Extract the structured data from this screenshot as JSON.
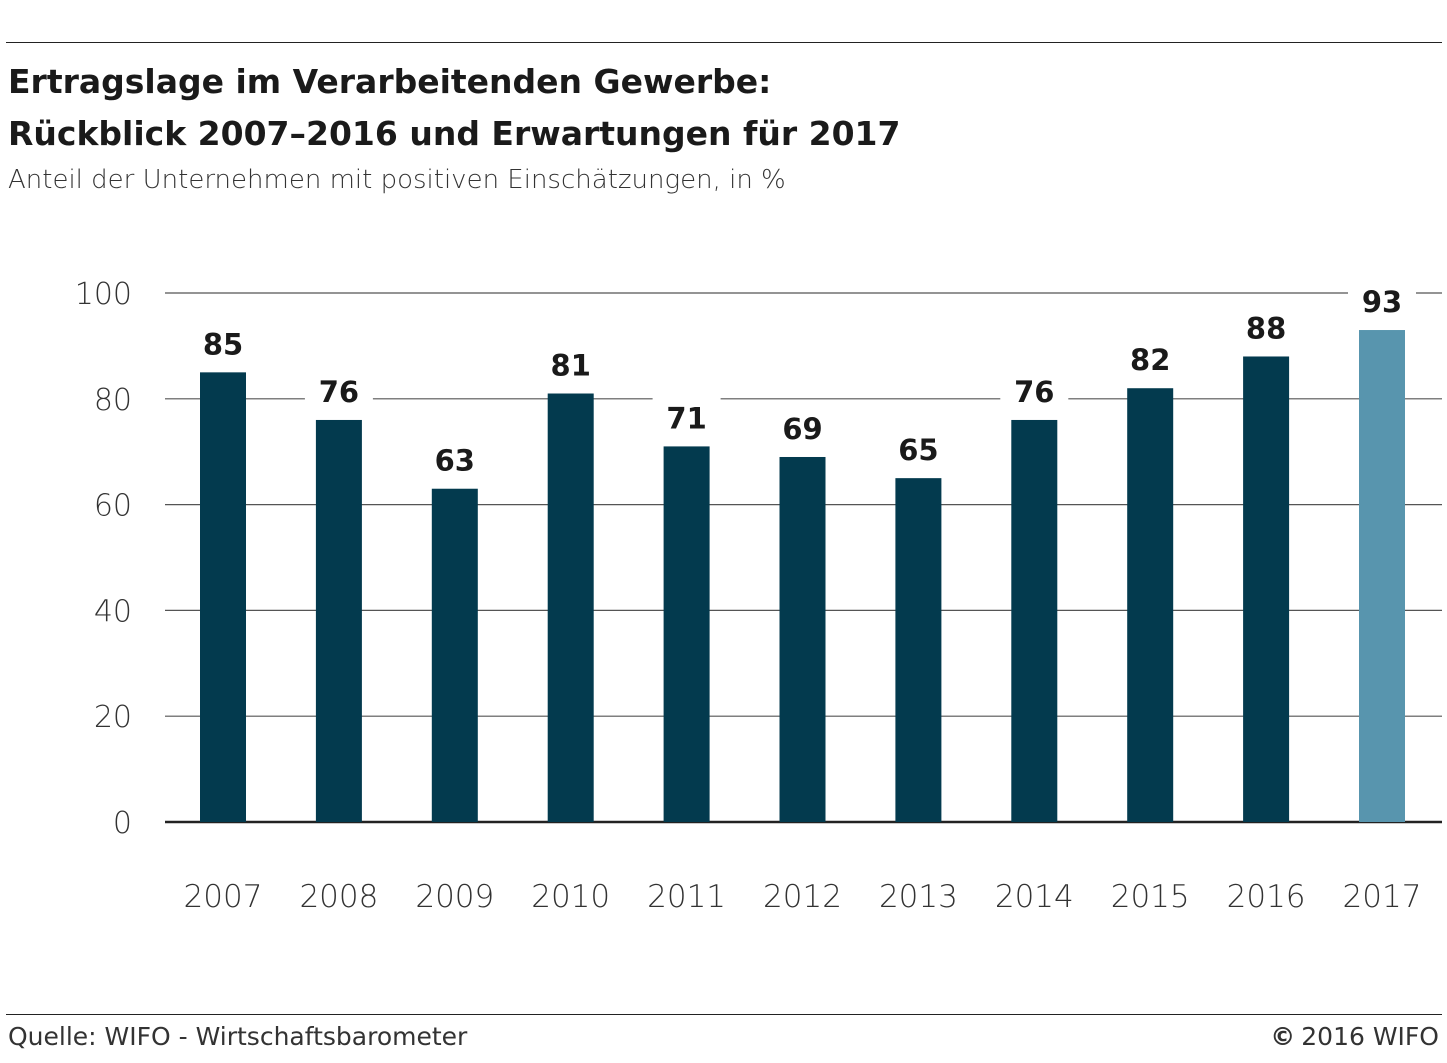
{
  "title_line1": "Ertragslage im Verarbeitenden Gewerbe:",
  "title_line2": "Rückblick 2007–2016 und Erwartungen für 2017",
  "subtitle": "Anteil der Unternehmen mit positiven Einschätzungen, in %",
  "source": "Quelle: WIFO - Wirtschaftsbarometer",
  "copyright": "2016 WIFO",
  "copyright_symbol": "©",
  "colors": {
    "bar": "#033a4e",
    "bar_highlight": "#5895ae",
    "grid": "#555555",
    "text": "#1a1a1a"
  },
  "chart_data": {
    "type": "bar",
    "categories": [
      "2007",
      "2008",
      "2009",
      "2010",
      "2011",
      "2012",
      "2013",
      "2014",
      "2015",
      "2016",
      "2017"
    ],
    "values": [
      85,
      76,
      63,
      81,
      71,
      69,
      65,
      76,
      82,
      88,
      93
    ],
    "data_labels": [
      "85",
      "76",
      "63",
      "81",
      "71",
      "69",
      "65",
      "76",
      "82",
      "88",
      "93"
    ],
    "highlight_category": "2017",
    "ylim": [
      0,
      100
    ],
    "yticks": [
      0,
      20,
      40,
      60,
      80,
      100
    ],
    "ytick_labels": [
      "0",
      "20",
      "40",
      "60",
      "80",
      "100"
    ],
    "grid": true
  }
}
